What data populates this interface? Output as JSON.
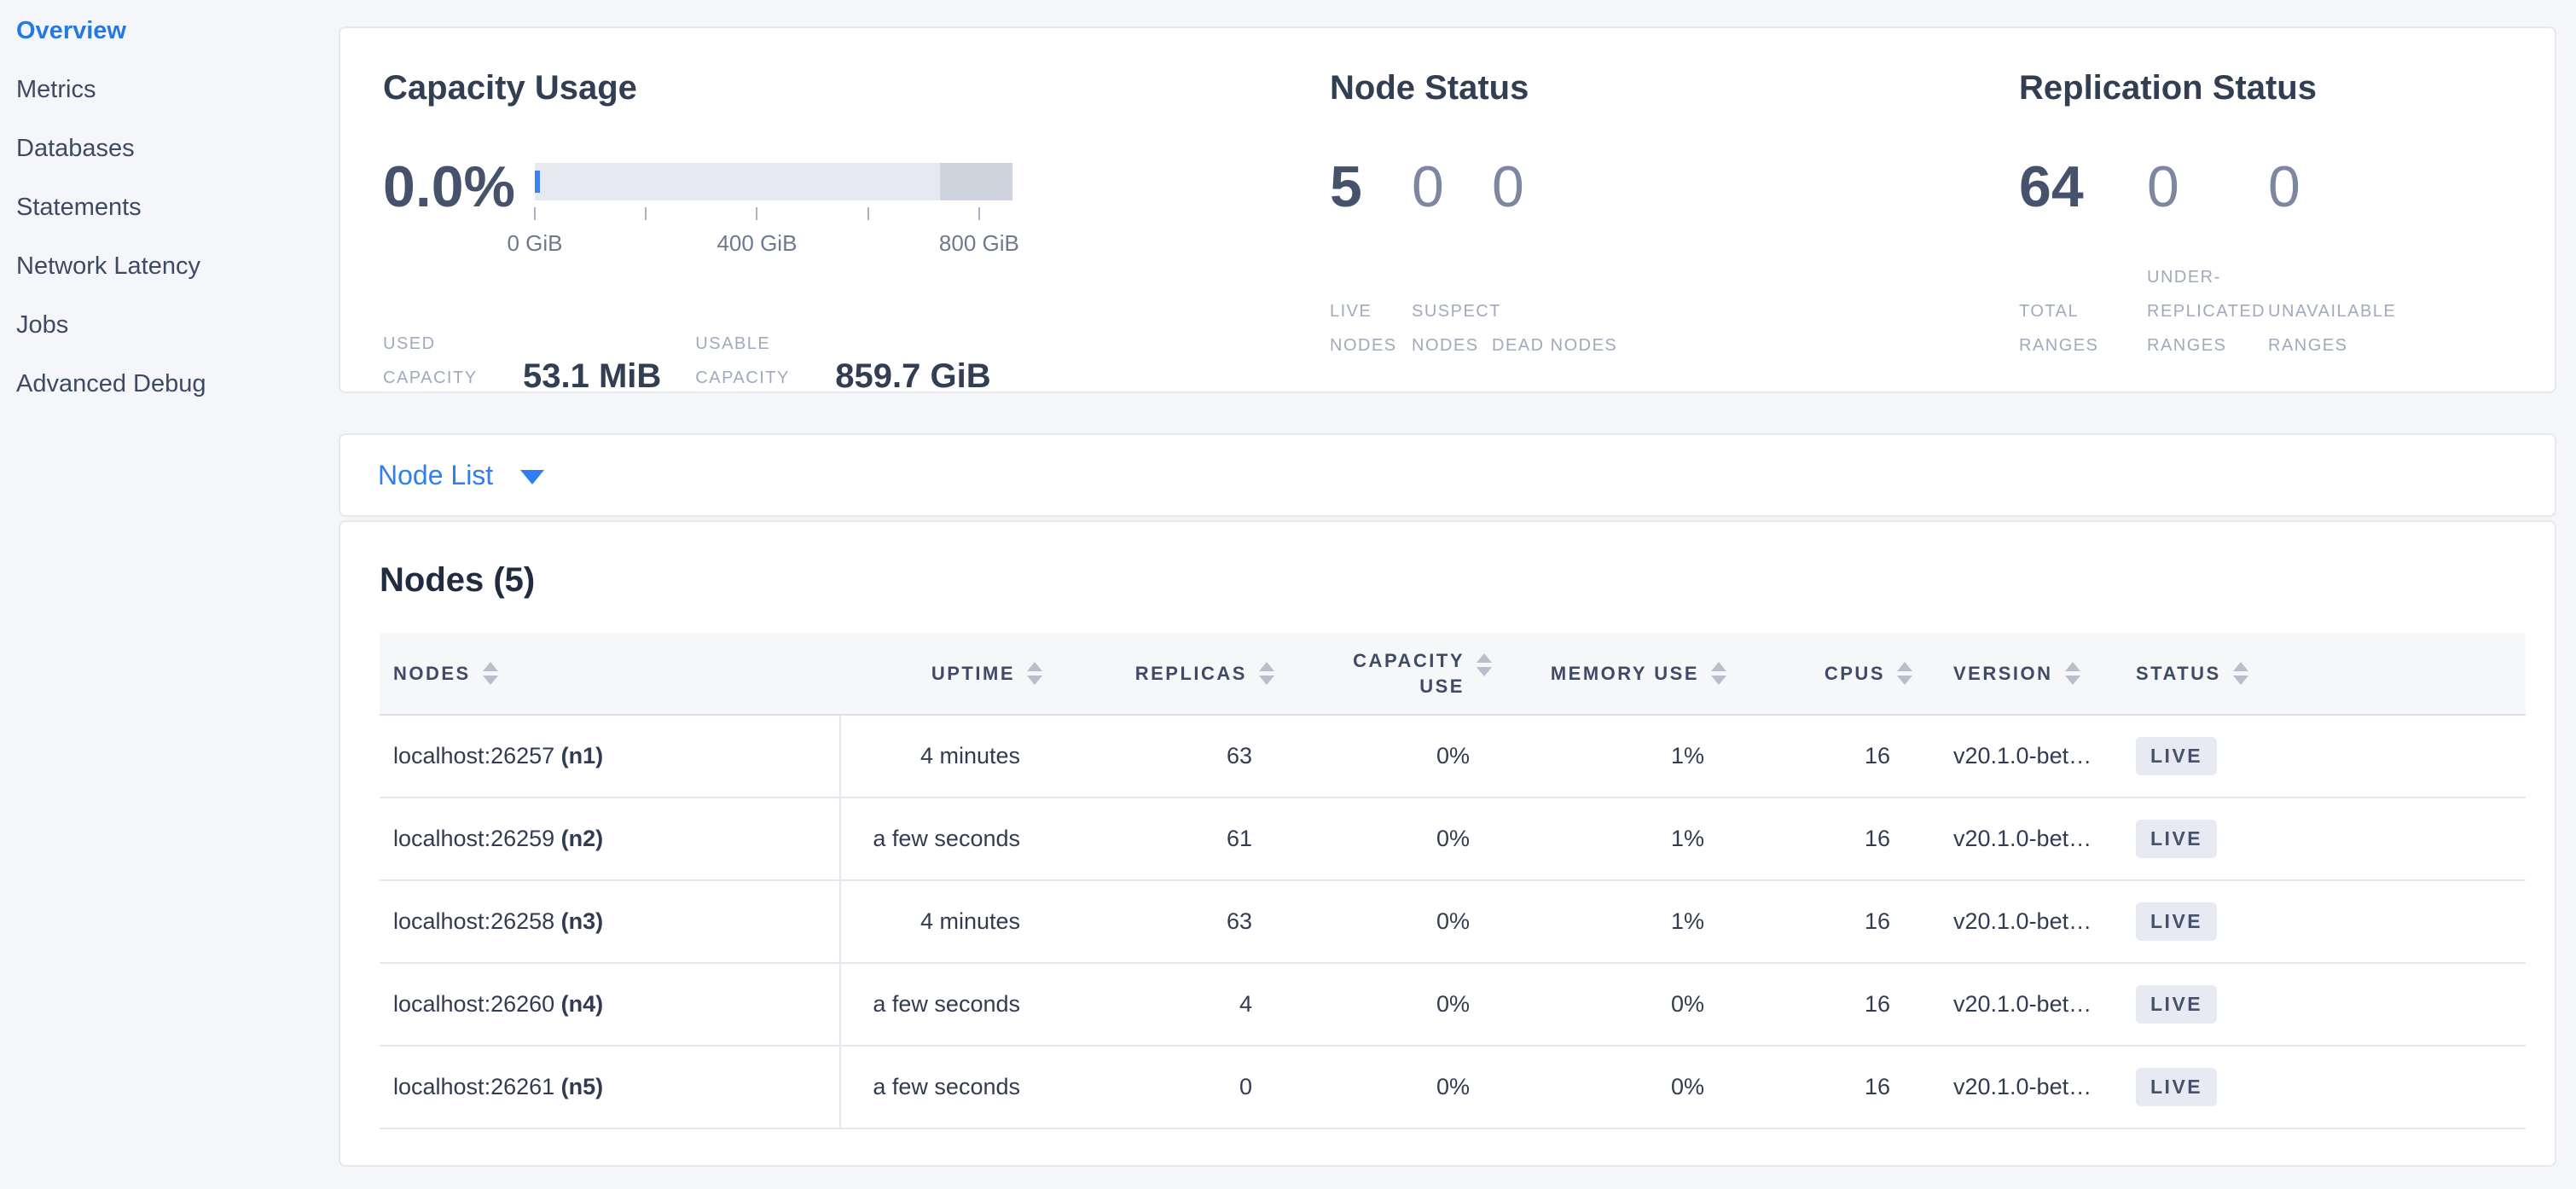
{
  "colors": {
    "accent_blue": "#2f7ef2",
    "nav_active_blue": "#2679e3",
    "gauge_usable": "#e7e9f0",
    "gauge_remainder": "#ced3dd",
    "gauge_used": "#3e80f5",
    "badge_live_bg": "#e7eaf3",
    "badge_live_text": "#46526b"
  },
  "sidebar": {
    "items": [
      {
        "label": "Overview",
        "active": true
      },
      {
        "label": "Metrics",
        "active": false
      },
      {
        "label": "Databases",
        "active": false
      },
      {
        "label": "Statements",
        "active": false
      },
      {
        "label": "Network Latency",
        "active": false
      },
      {
        "label": "Jobs",
        "active": false
      },
      {
        "label": "Advanced Debug",
        "active": false
      }
    ]
  },
  "summary": {
    "capacity": {
      "title": "Capacity Usage",
      "percent": "0.0%",
      "axis_ticks": [
        {
          "pos": 0,
          "label": "0 GiB"
        },
        {
          "pos": 23.26,
          "label": ""
        },
        {
          "pos": 46.51,
          "label": "400 GiB"
        },
        {
          "pos": 69.77,
          "label": ""
        },
        {
          "pos": 93.02,
          "label": "800 GiB"
        }
      ],
      "used": {
        "label": "USED CAPACITY",
        "value": "53.1 MiB"
      },
      "usable": {
        "label": "USABLE CAPACITY",
        "value": "859.7 GiB"
      }
    },
    "node_status": {
      "title": "Node Status",
      "stats": [
        {
          "value": "5",
          "label": "LIVE NODES"
        },
        {
          "value": "0",
          "label": "SUSPECT NODES"
        },
        {
          "value": "0",
          "label": "DEAD NODES"
        }
      ]
    },
    "replication": {
      "title": "Replication Status",
      "stats": [
        {
          "value": "64",
          "label": "TOTAL RANGES"
        },
        {
          "value": "0",
          "label": "UNDER-REPLICATED RANGES"
        },
        {
          "value": "0",
          "label": "UNAVAILABLE RANGES"
        }
      ]
    }
  },
  "gauge": {
    "used_sliver_percent": 1.0,
    "remainder_percent": 15.2
  },
  "node_list_bar": {
    "label": "Node List"
  },
  "nodes_section": {
    "heading": "Nodes (5)",
    "columns": [
      {
        "label": "NODES"
      },
      {
        "label": "UPTIME"
      },
      {
        "label": "REPLICAS"
      },
      {
        "label": "CAPACITY USE"
      },
      {
        "label": "MEMORY USE"
      },
      {
        "label": "CPUS"
      },
      {
        "label": "VERSION"
      },
      {
        "label": "STATUS"
      }
    ],
    "rows": [
      {
        "host": "localhost:26257",
        "id": "(n1)",
        "uptime": "4 minutes",
        "replicas": "63",
        "capacity_use": "0%",
        "memory_use": "1%",
        "cpus": "16",
        "version": "v20.1.0-bet…",
        "status": "LIVE"
      },
      {
        "host": "localhost:26259",
        "id": "(n2)",
        "uptime": "a few seconds",
        "replicas": "61",
        "capacity_use": "0%",
        "memory_use": "1%",
        "cpus": "16",
        "version": "v20.1.0-bet…",
        "status": "LIVE"
      },
      {
        "host": "localhost:26258",
        "id": "(n3)",
        "uptime": "4 minutes",
        "replicas": "63",
        "capacity_use": "0%",
        "memory_use": "1%",
        "cpus": "16",
        "version": "v20.1.0-bet…",
        "status": "LIVE"
      },
      {
        "host": "localhost:26260",
        "id": "(n4)",
        "uptime": "a few seconds",
        "replicas": "4",
        "capacity_use": "0%",
        "memory_use": "0%",
        "cpus": "16",
        "version": "v20.1.0-bet…",
        "status": "LIVE"
      },
      {
        "host": "localhost:26261",
        "id": "(n5)",
        "uptime": "a few seconds",
        "replicas": "0",
        "capacity_use": "0%",
        "memory_use": "0%",
        "cpus": "16",
        "version": "v20.1.0-bet…",
        "status": "LIVE"
      }
    ]
  }
}
